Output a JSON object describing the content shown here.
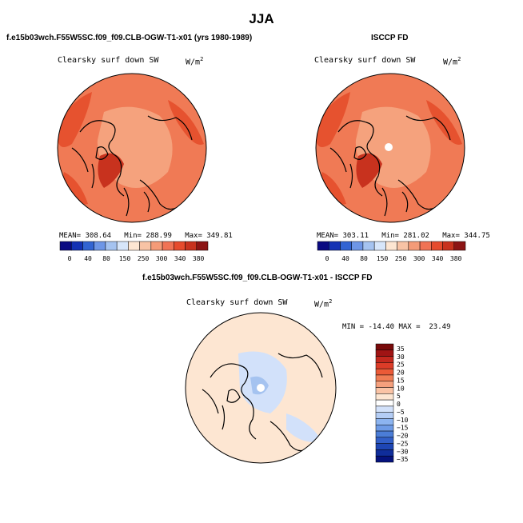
{
  "page": {
    "title": "JJA"
  },
  "panels": [
    {
      "case_name": "f.e15b03wch.F55W5SC.f09_f09.CLB-OGW-T1-x01 (yrs 1980-1989)",
      "variable": "Clearsky surf down SW",
      "units": "W/m",
      "units_exp": "2",
      "mean_label": "MEAN=",
      "mean": "308.64",
      "min_label": "Min=",
      "min": "288.99",
      "max_label": "Max=",
      "max": "349.81"
    },
    {
      "case_name": "ISCCP FD",
      "variable": "Clearsky surf down SW",
      "units": "W/m",
      "units_exp": "2",
      "mean_label": "MEAN=",
      "mean": "303.11",
      "min_label": "Min=",
      "min": "281.02",
      "max_label": "Max=",
      "max": "344.75"
    }
  ],
  "diff_panel": {
    "case_name": "f.e15b03wch.F55W5SC.f09_f09.CLB-OGW-T1-x01 - ISCCP FD",
    "variable": "Clearsky surf down SW",
    "units": "W/m",
    "units_exp": "2",
    "min_label": "MIN =",
    "min": "-14.40",
    "max_label": "MAX =",
    "max": "23.49"
  },
  "colorbar_h": {
    "labels": [
      "0",
      "40",
      "80",
      "150",
      "250",
      "300",
      "340",
      "380"
    ],
    "colors": [
      "#0a0a82",
      "#1432b4",
      "#3264d2",
      "#6e96e6",
      "#a5c3f0",
      "#d7e6fa",
      "#fde6d2",
      "#f8c3a5",
      "#f49b78",
      "#f07355",
      "#e64b2d",
      "#c8321e",
      "#8c1414"
    ]
  },
  "colorbar_v": {
    "labels": [
      "35",
      "30",
      "25",
      "20",
      "15",
      "10",
      "5",
      "0",
      "−5",
      "−10",
      "−15",
      "−20",
      "−25",
      "−30",
      "−35"
    ],
    "colors": [
      "#780a0a",
      "#a01414",
      "#c3281e",
      "#dc3c28",
      "#eb5a37",
      "#f07d55",
      "#f5a07d",
      "#fac3a5",
      "#fde6d2",
      "#ffffff",
      "#d2e1fa",
      "#b4cdf5",
      "#8cb4f0",
      "#6e9be6",
      "#4b7dd7",
      "#325fc8",
      "#1e46b4",
      "#0f2d9b",
      "#05127d"
    ]
  },
  "colors": {
    "map_base": "#f07a55",
    "map_dark": "#e6522f",
    "map_darker": "#c8321e",
    "map_light": "#f5a27d",
    "diff_base": "#fde6d2",
    "diff_blue": "#d2e1fa",
    "diff_bluer": "#a5c3f0",
    "pole_dot": "#ffffff"
  }
}
